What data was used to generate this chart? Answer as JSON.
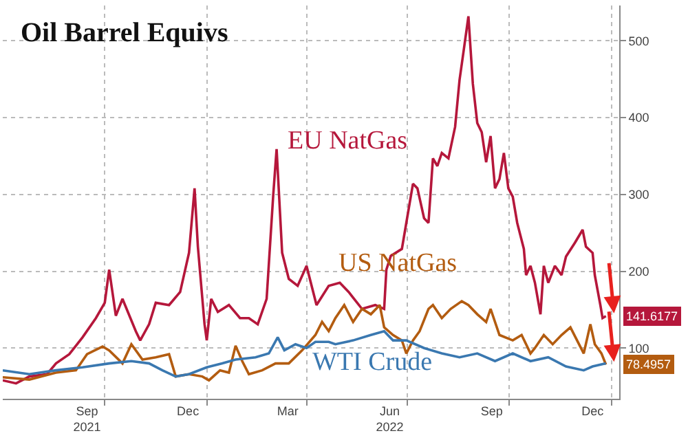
{
  "chart_data": {
    "type": "line",
    "title": "Oil Barrel Equivs",
    "legend": false,
    "grid": true,
    "line_style": "solid",
    "marker": "none",
    "xlim": [
      "2021-07-01",
      "2023-01-08"
    ],
    "ylim": [
      34,
      546
    ],
    "xticks": [
      {
        "value": "2021-09-15",
        "label": "Sep\n2021"
      },
      {
        "value": "2021-12-15",
        "label": "Dec"
      },
      {
        "value": "2022-03-15",
        "label": "Mar"
      },
      {
        "value": "2022-06-15",
        "label": "Jun\n2022"
      },
      {
        "value": "2022-09-15",
        "label": "Sep"
      },
      {
        "value": "2022-12-15",
        "label": "Dec"
      },
      {
        "value": "2021-10-01",
        "label": null
      },
      {
        "value": "2022-01-01",
        "label": null
      },
      {
        "value": "2022-04-01",
        "label": null
      },
      {
        "value": "2022-07-01",
        "label": null
      },
      {
        "value": "2022-10-01",
        "label": null
      },
      {
        "value": "2023-01-01",
        "label": null
      }
    ],
    "yticks": [
      100,
      200,
      300,
      400,
      500
    ],
    "series": [
      {
        "name": "EU NatGas",
        "color": "#b5173b",
        "x": [
          "2021-07-01",
          "2021-07-13",
          "2021-07-25",
          "2021-08-10",
          "2021-08-18",
          "2021-08-30",
          "2021-09-11",
          "2021-09-23",
          "2021-10-01",
          "2021-10-05",
          "2021-10-11",
          "2021-10-17",
          "2021-10-29",
          "2021-11-02",
          "2021-11-10",
          "2021-11-16",
          "2021-11-28",
          "2021-12-08",
          "2021-12-16",
          "2021-12-21",
          "2021-12-24",
          "2021-12-30",
          "2022-01-01",
          "2022-01-05",
          "2022-01-11",
          "2022-01-21",
          "2022-01-31",
          "2022-02-08",
          "2022-02-16",
          "2022-02-24",
          "2022-03-02",
          "2022-03-05",
          "2022-03-10",
          "2022-03-16",
          "2022-03-24",
          "2022-04-01",
          "2022-04-10",
          "2022-04-21",
          "2022-05-01",
          "2022-05-09",
          "2022-05-21",
          "2022-06-02",
          "2022-06-10",
          "2022-06-12",
          "2022-06-16",
          "2022-06-26",
          "2022-06-30",
          "2022-07-06",
          "2022-07-10",
          "2022-07-16",
          "2022-07-20",
          "2022-07-24",
          "2022-07-28",
          "2022-08-01",
          "2022-08-07",
          "2022-08-13",
          "2022-08-17",
          "2022-08-21",
          "2022-08-25",
          "2022-08-29",
          "2022-09-02",
          "2022-09-06",
          "2022-09-10",
          "2022-09-14",
          "2022-09-18",
          "2022-09-22",
          "2022-09-26",
          "2022-09-30",
          "2022-10-04",
          "2022-10-08",
          "2022-10-14",
          "2022-10-16",
          "2022-10-20",
          "2022-10-24",
          "2022-10-29",
          "2022-11-01",
          "2022-11-05",
          "2022-11-11",
          "2022-11-17",
          "2022-11-21",
          "2022-11-29",
          "2022-12-06",
          "2022-12-09",
          "2022-12-15",
          "2022-12-17",
          "2022-12-22",
          "2022-12-24",
          "2022-12-27"
        ],
        "values": [
          58,
          54,
          63,
          66,
          80,
          92,
          114,
          139,
          159,
          202,
          142,
          164,
          122,
          110,
          131,
          159,
          156,
          173,
          224,
          308,
          232,
          131,
          110,
          164,
          147,
          156,
          139,
          139,
          131,
          164,
          300,
          359,
          224,
          190,
          181,
          207,
          156,
          181,
          185,
          173,
          151,
          156,
          151,
          202,
          220,
          229,
          263,
          314,
          308,
          269,
          263,
          347,
          337,
          354,
          347,
          388,
          449,
          490,
          532,
          444,
          393,
          381,
          342,
          376,
          308,
          320,
          354,
          308,
          297,
          263,
          229,
          195,
          207,
          185,
          144,
          207,
          185,
          207,
          195,
          219,
          237,
          254,
          232,
          224,
          195,
          156,
          139,
          141.6177
        ]
      },
      {
        "name": "US NatGas",
        "color": "#b35c10",
        "x": [
          "2021-07-01",
          "2021-07-25",
          "2021-08-18",
          "2021-09-05",
          "2021-09-15",
          "2021-09-29",
          "2021-10-05",
          "2021-10-17",
          "2021-10-25",
          "2021-11-04",
          "2021-11-16",
          "2021-11-28",
          "2021-12-04",
          "2021-12-16",
          "2021-12-28",
          "2022-01-03",
          "2022-01-13",
          "2022-01-21",
          "2022-01-27",
          "2022-02-02",
          "2022-02-08",
          "2022-02-20",
          "2022-03-04",
          "2022-03-16",
          "2022-03-28",
          "2022-04-09",
          "2022-04-15",
          "2022-04-21",
          "2022-04-27",
          "2022-05-05",
          "2022-05-13",
          "2022-05-21",
          "2022-05-29",
          "2022-06-06",
          "2022-06-10",
          "2022-06-18",
          "2022-06-26",
          "2022-06-30",
          "2022-07-06",
          "2022-07-12",
          "2022-07-20",
          "2022-07-24",
          "2022-08-01",
          "2022-08-09",
          "2022-08-19",
          "2022-08-25",
          "2022-09-02",
          "2022-09-10",
          "2022-09-14",
          "2022-09-22",
          "2022-10-04",
          "2022-10-12",
          "2022-10-20",
          "2022-10-24",
          "2022-11-01",
          "2022-11-09",
          "2022-11-17",
          "2022-11-25",
          "2022-12-01",
          "2022-12-07",
          "2022-12-13",
          "2022-12-17",
          "2022-12-23",
          "2022-12-27"
        ],
        "values": [
          62,
          59,
          68,
          71,
          92,
          102,
          97,
          80,
          105,
          85,
          88,
          92,
          63,
          66,
          63,
          58,
          71,
          68,
          103,
          83,
          66,
          71,
          80,
          80,
          97,
          117,
          134,
          122,
          139,
          156,
          134,
          151,
          144,
          156,
          127,
          117,
          110,
          93,
          110,
          122,
          151,
          156,
          139,
          151,
          161,
          156,
          144,
          134,
          151,
          117,
          110,
          117,
          93,
          100,
          117,
          105,
          117,
          127,
          110,
          93,
          131,
          105,
          93,
          78.4957
        ]
      },
      {
        "name": "WTI Crude",
        "color": "#3a78b0",
        "x": [
          "2021-07-01",
          "2021-07-25",
          "2021-08-18",
          "2021-09-11",
          "2021-10-05",
          "2021-10-25",
          "2021-11-10",
          "2021-11-22",
          "2021-12-04",
          "2021-12-16",
          "2022-01-01",
          "2022-01-15",
          "2022-01-27",
          "2022-02-14",
          "2022-02-26",
          "2022-03-06",
          "2022-03-12",
          "2022-03-22",
          "2022-04-01",
          "2022-04-09",
          "2022-04-21",
          "2022-04-27",
          "2022-05-13",
          "2022-05-29",
          "2022-06-10",
          "2022-06-18",
          "2022-06-30",
          "2022-07-16",
          "2022-08-01",
          "2022-08-17",
          "2022-09-02",
          "2022-09-18",
          "2022-10-04",
          "2022-10-20",
          "2022-11-05",
          "2022-11-21",
          "2022-12-07",
          "2022-12-15",
          "2022-12-27"
        ],
        "values": [
          71,
          66,
          71,
          75,
          80,
          83,
          80,
          71,
          63,
          66,
          75,
          80,
          85,
          88,
          93,
          114,
          97,
          105,
          100,
          108,
          108,
          105,
          110,
          117,
          122,
          110,
          110,
          100,
          93,
          88,
          93,
          83,
          93,
          83,
          88,
          76,
          71,
          76,
          80
        ]
      }
    ],
    "annotations": [
      {
        "text": "141.6177",
        "x": "2022-12-27",
        "y": 141.6177
      },
      {
        "text": "78.4957",
        "x": "2022-12-27",
        "y": 78.4957
      }
    ]
  }
}
